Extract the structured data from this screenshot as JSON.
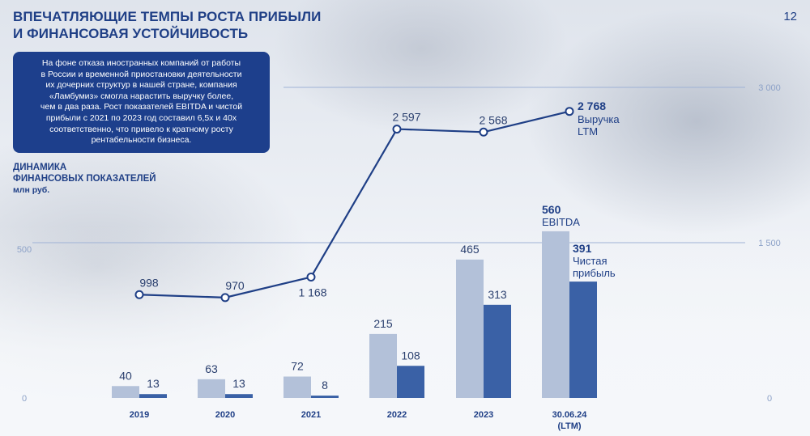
{
  "page": {
    "title_line1": "ВПЕЧАТЛЯЮЩИЕ ТЕМПЫ РОСТА ПРИБЫЛИ",
    "title_line2": "И ФИНАНСОВАЯ УСТОЙЧИВОСТЬ",
    "page_number": "12"
  },
  "info_box": {
    "lines": [
      "На фоне отказа иностранных компаний от работы",
      "в России и временной приостановки деятельности",
      "их дочерних структур в нашей стране, компания",
      "«Ламбумиз» смогла нарастить выручку более,",
      "чем в два раза. Рост показателей EBITDA и чистой",
      "прибыли с 2021 по 2023 год составил 6,5х и 40х",
      "соответственно, что привело к кратному росту",
      "рентабельности бизнеса."
    ]
  },
  "section": {
    "heading_line1": "ДИНАМИКА",
    "heading_line2": "ФИНАНСОВЫХ ПОКАЗАТЕЛЕЙ",
    "unit": "млн руб."
  },
  "colors": {
    "ebitda": "#b3c1d9",
    "net_profit": "#3a61a6",
    "revenue_line": "#1f3f86",
    "accent": "#1f3f86"
  },
  "chart_data": {
    "type": "bar+line",
    "categories": [
      "2019",
      "2020",
      "2021",
      "2022",
      "2023",
      "30.06.24"
    ],
    "category_sublabels": [
      "",
      "",
      "",
      "",
      "",
      "(LTM)"
    ],
    "series": [
      {
        "name": "EBITDA",
        "type": "bar",
        "axis": "left",
        "values": [
          40,
          63,
          72,
          215,
          465,
          560
        ],
        "labels": [
          "40",
          "63",
          "72",
          "215",
          "465",
          "560"
        ]
      },
      {
        "name": "Чистая прибыль",
        "type": "bar",
        "axis": "left",
        "values": [
          13,
          13,
          8,
          108,
          313,
          391
        ],
        "labels": [
          "13",
          "13",
          "8",
          "108",
          "313",
          "391"
        ]
      },
      {
        "name": "Выручка LTM",
        "type": "line",
        "axis": "right",
        "values": [
          998,
          970,
          1168,
          2597,
          2568,
          2768
        ],
        "labels": [
          "998",
          "970",
          "1 168",
          "2 597",
          "2 568",
          "2 768"
        ]
      }
    ],
    "left_axis": {
      "ticks": [
        0,
        500
      ],
      "tick_labels": [
        "0",
        "500"
      ],
      "ylim": [
        0,
        750
      ]
    },
    "right_axis": {
      "ticks": [
        0,
        1500,
        3000
      ],
      "tick_labels": [
        "0",
        "1 500",
        "3 000"
      ],
      "ylim": [
        0,
        3000
      ]
    },
    "last_point_annotations": {
      "revenue": {
        "value": "2 768",
        "line1": "Выручка",
        "line2": "LTM"
      },
      "ebitda": {
        "value": "560",
        "line1": "EBITDA"
      },
      "net_profit": {
        "value": "391",
        "line1": "Чистая",
        "line2": "прибыль"
      }
    },
    "grid": true
  }
}
